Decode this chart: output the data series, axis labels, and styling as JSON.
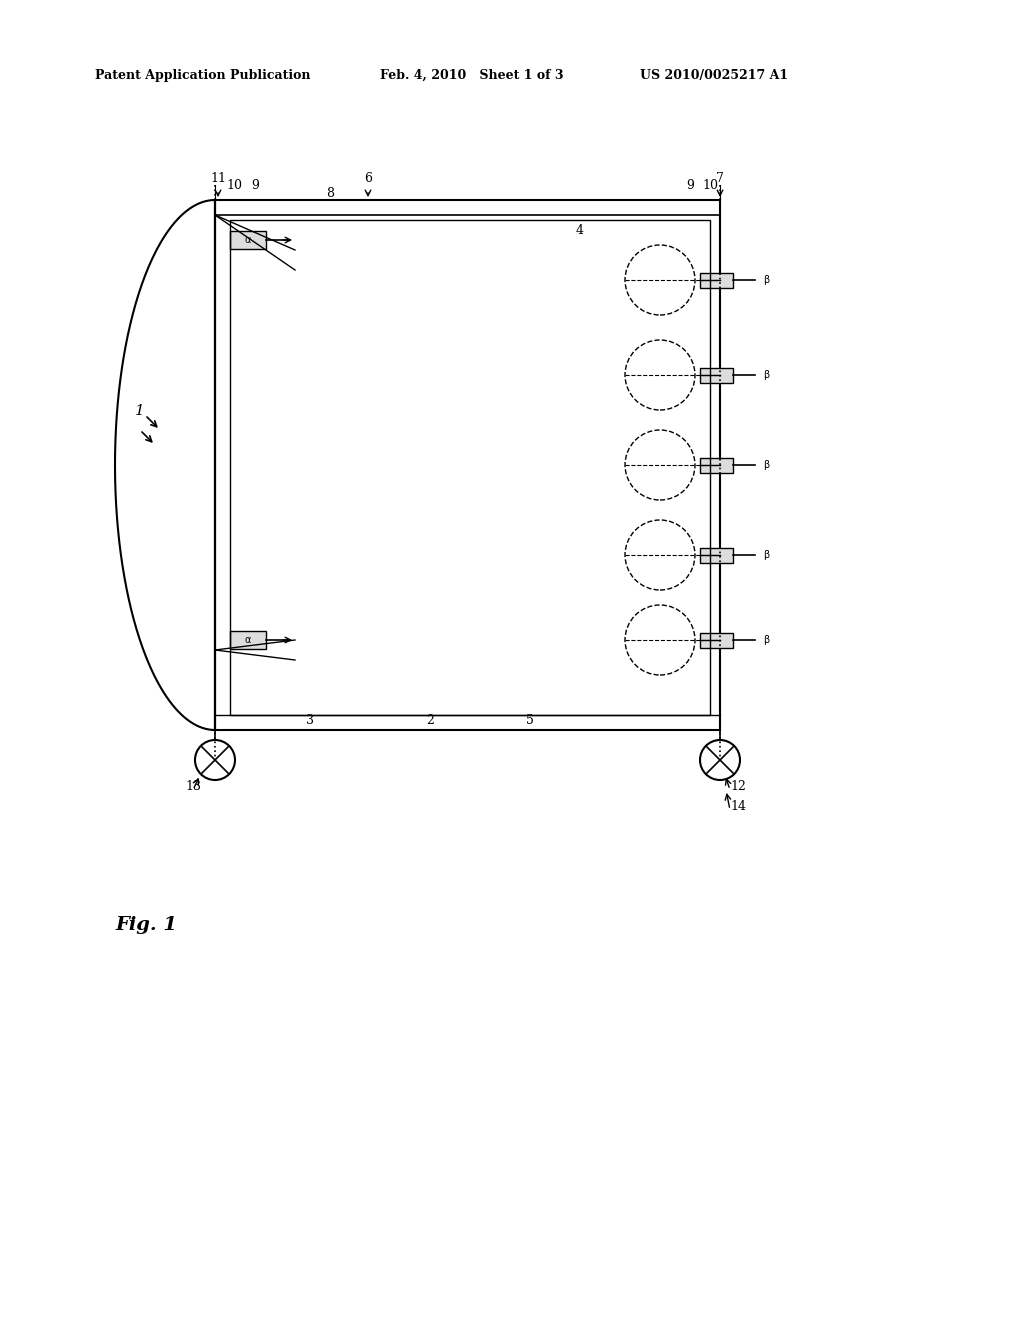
{
  "bg_color": "#ffffff",
  "header_text1": "Patent Application Publication",
  "header_text2": "Feb. 4, 2010   Sheet 1 of 3",
  "header_text3": "US 2010/0025217 A1",
  "fig_label": "Fig. 1",
  "line_color": "#000000",
  "diagram_color": "#333333"
}
